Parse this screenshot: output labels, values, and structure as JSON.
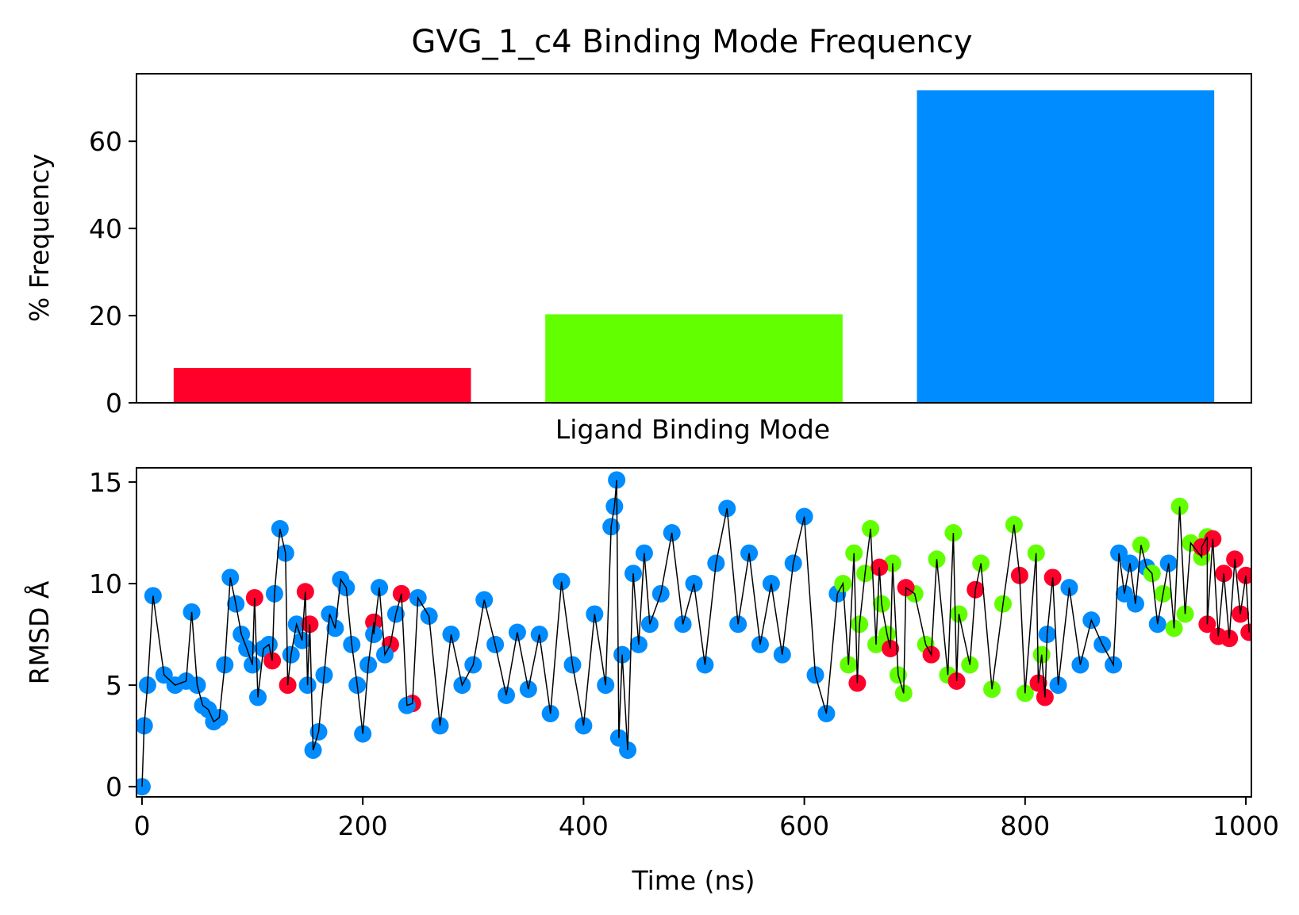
{
  "chart_data": [
    {
      "type": "bar",
      "title": "GVG_1_c4 Binding Mode Frequency",
      "xlabel": "Ligand Binding Mode",
      "ylabel": "% Frequency",
      "categories": [
        "",
        "",
        ""
      ],
      "values": [
        8.0,
        20.3,
        71.7
      ],
      "colors": [
        "#ff002b",
        "#62ff00",
        "#008cff"
      ],
      "ylim": [
        0,
        75.5
      ],
      "yticks": [
        0,
        20,
        40,
        60
      ],
      "grid": false
    },
    {
      "type": "scatter",
      "xlabel": "Time (ns)",
      "ylabel": "RMSD Å",
      "xlim": [
        -5,
        1005
      ],
      "ylim": [
        -0.5,
        15.7
      ],
      "xticks": [
        0,
        200,
        400,
        600,
        800,
        1000
      ],
      "yticks": [
        0,
        5,
        10,
        15
      ],
      "grid": false,
      "line_color": "#000000",
      "mode_colors": [
        "#ff002b",
        "#62ff00",
        "#008cff"
      ],
      "series": [
        {
          "mode": 2,
          "x": [
            0,
            2,
            5,
            10,
            20,
            30,
            40,
            45,
            50,
            55,
            60,
            65,
            70,
            75,
            80,
            85,
            90,
            95,
            100
          ],
          "values": [
            0.0,
            3.0,
            5.0,
            9.4,
            5.5,
            5.0,
            5.2,
            8.6,
            5.0,
            4.0,
            3.8,
            3.2,
            3.4,
            6.0,
            10.3,
            9.0,
            7.5,
            6.8,
            6.0
          ]
        },
        {
          "mode": 2,
          "x": [
            105,
            110,
            115,
            120,
            125,
            130,
            135,
            140,
            145,
            150,
            155,
            160,
            165,
            170,
            175,
            180
          ],
          "values": [
            4.4,
            6.8,
            7.0,
            9.5,
            12.7,
            11.5,
            6.5,
            8.0,
            7.2,
            5.0,
            1.8,
            2.7,
            5.5,
            8.5,
            7.8,
            10.2
          ]
        },
        {
          "mode": 0,
          "x": [
            102,
            118,
            132,
            148,
            152,
            210,
            225,
            235,
            245
          ],
          "values": [
            9.3,
            6.2,
            5.0,
            9.6,
            8.0,
            8.1,
            7.0,
            9.5,
            4.1
          ]
        },
        {
          "mode": 2,
          "x": [
            185,
            190,
            195,
            200,
            205,
            210,
            215,
            220,
            230,
            240,
            250,
            260,
            270,
            280,
            290,
            300,
            310,
            320,
            330,
            340,
            350,
            360,
            370,
            380,
            390,
            400,
            410,
            420
          ],
          "values": [
            9.8,
            7.0,
            5.0,
            2.6,
            6.0,
            7.5,
            9.8,
            6.5,
            8.5,
            4.0,
            9.3,
            8.4,
            3.0,
            7.5,
            5.0,
            6.0,
            9.2,
            7.0,
            4.5,
            7.6,
            4.8,
            7.5,
            3.6,
            10.1,
            6.0,
            3.0,
            8.5,
            5.0
          ]
        },
        {
          "mode": 2,
          "x": [
            425,
            428,
            430,
            432,
            435,
            440,
            445,
            450,
            455,
            460,
            470,
            480,
            490,
            500,
            510,
            520,
            530,
            540,
            550,
            560,
            570,
            580,
            590,
            600,
            610,
            620,
            630
          ],
          "values": [
            12.8,
            13.8,
            15.1,
            2.4,
            6.5,
            1.8,
            10.5,
            7.0,
            11.5,
            8.0,
            9.5,
            12.5,
            8.0,
            10.0,
            6.0,
            11.0,
            13.7,
            8.0,
            11.5,
            7.0,
            10.0,
            6.5,
            11.0,
            13.3,
            5.5,
            3.6,
            9.5
          ]
        },
        {
          "mode": 1,
          "x": [
            635,
            640,
            645,
            650,
            655,
            660,
            665,
            670,
            675,
            680,
            685,
            690,
            700,
            710,
            720,
            730,
            735,
            740,
            750,
            760,
            770,
            780,
            790,
            800,
            810,
            815
          ],
          "values": [
            10.0,
            6.0,
            11.5,
            8.0,
            10.5,
            12.7,
            7.0,
            9.0,
            7.5,
            11.0,
            5.5,
            4.6,
            9.5,
            7.0,
            11.2,
            5.5,
            12.5,
            8.5,
            6.0,
            11.0,
            4.8,
            9.0,
            12.9,
            4.6,
            11.5,
            6.5
          ]
        },
        {
          "mode": 0,
          "x": [
            648,
            668,
            678,
            692,
            715,
            738,
            755,
            795,
            812,
            818,
            825
          ],
          "values": [
            5.1,
            10.8,
            6.8,
            9.8,
            6.5,
            5.2,
            9.7,
            10.4,
            5.1,
            4.4,
            10.3
          ]
        },
        {
          "mode": 2,
          "x": [
            820,
            830,
            840,
            850,
            860,
            870,
            880,
            885,
            890,
            895,
            900,
            910,
            920,
            930
          ],
          "values": [
            7.5,
            5.0,
            9.8,
            6.0,
            8.2,
            7.0,
            6.0,
            11.5,
            9.5,
            11.0,
            9.0,
            10.8,
            8.0,
            11.0
          ]
        },
        {
          "mode": 1,
          "x": [
            905,
            915,
            925,
            935,
            940,
            945,
            950,
            960,
            965
          ],
          "values": [
            11.9,
            10.5,
            9.5,
            7.8,
            13.8,
            8.5,
            12.0,
            11.3,
            12.3
          ]
        },
        {
          "mode": 0,
          "x": [
            960,
            965,
            970,
            975,
            980,
            985,
            990,
            995,
            1000,
            1003
          ],
          "values": [
            11.8,
            8.0,
            12.2,
            7.4,
            10.5,
            7.3,
            11.2,
            8.5,
            10.4,
            7.6
          ]
        }
      ]
    }
  ]
}
